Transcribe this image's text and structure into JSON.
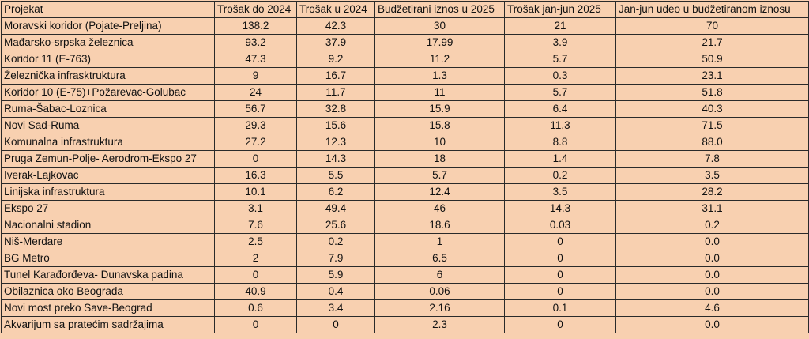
{
  "chart_data": {
    "type": "table",
    "columns": [
      "Projekat",
      "Trošak do 2024",
      "Trošak u 2024",
      "Budžetirani iznos u 2025",
      "Trošak jan-jun 2025",
      "Jan-jun udeo u budžetiranom iznosu"
    ],
    "rows": [
      [
        "Moravski koridor (Pojate-Preljina)",
        "138.2",
        "42.3",
        "30",
        "21",
        "70"
      ],
      [
        "Mađarsko-srpska železnica",
        "93.2",
        "37.9",
        "17.99",
        "3.9",
        "21.7"
      ],
      [
        "Koridor 11 (E-763)",
        "47.3",
        "9.2",
        "11.2",
        "5.7",
        "50.9"
      ],
      [
        "Železnička infrasktruktura",
        "9",
        "16.7",
        "1.3",
        "0.3",
        "23.1"
      ],
      [
        "Koridor 10 (E-75)+Požarevac-Golubac",
        "24",
        "11.7",
        "11",
        "5.7",
        "51.8"
      ],
      [
        "Ruma-Šabac-Loznica",
        "56.7",
        "32.8",
        "15.9",
        "6.4",
        "40.3"
      ],
      [
        "Novi Sad-Ruma",
        "29.3",
        "15.6",
        "15.8",
        "11.3",
        "71.5"
      ],
      [
        "Komunalna infrastruktura",
        "27.2",
        "12.3",
        "10",
        "8.8",
        "88.0"
      ],
      [
        "Pruga Zemun-Polje- Aerodrom-Ekspo 27",
        "0",
        "14.3",
        "18",
        "1.4",
        "7.8"
      ],
      [
        "Iverak-Lajkovac",
        "16.3",
        "5.5",
        "5.7",
        "0.2",
        "3.5"
      ],
      [
        "Linijska infrastruktura",
        "10.1",
        "6.2",
        "12.4",
        "3.5",
        "28.2"
      ],
      [
        "Ekspo 27",
        "3.1",
        "49.4",
        "46",
        "14.3",
        "31.1"
      ],
      [
        "Nacionalni stadion",
        "7.6",
        "25.6",
        "18.6",
        "0.03",
        "0.2"
      ],
      [
        "Niš-Merdare",
        "2.5",
        "0.2",
        "1",
        "0",
        "0.0"
      ],
      [
        "BG Metro",
        "2",
        "7.9",
        "6.5",
        "0",
        "0.0"
      ],
      [
        "Tunel Karađorđeva- Dunavska padina",
        "0",
        "5.9",
        "6",
        "0",
        "0.0"
      ],
      [
        "Obilaznica oko Beograda",
        "40.9",
        "0.4",
        "0.06",
        "0",
        "0.0"
      ],
      [
        "Novi most preko Save-Beograd",
        "0.6",
        "3.4",
        "2.16",
        "0.1",
        "4.6"
      ],
      [
        "Akvarijum sa pratećim sadržajima",
        "0",
        "0",
        "2.3",
        "0",
        "0.0"
      ]
    ],
    "background_color": "#f8d0b0",
    "border_color": "#2a2a2a"
  }
}
